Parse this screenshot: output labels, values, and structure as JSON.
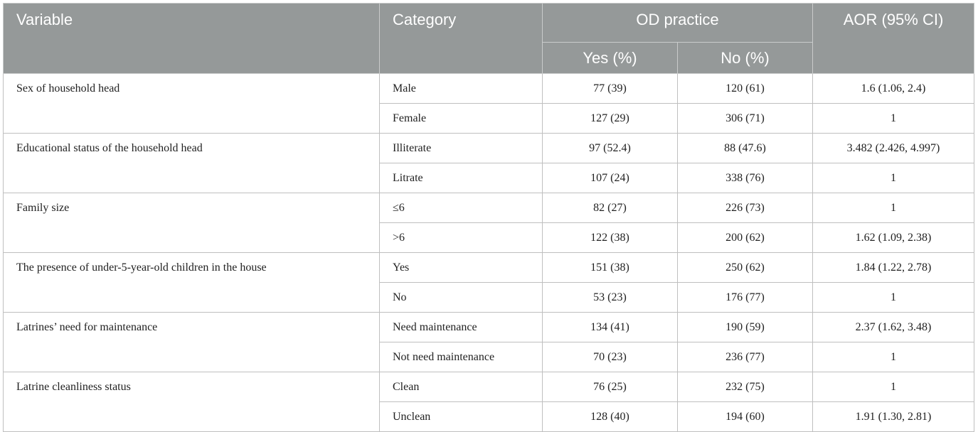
{
  "header": {
    "variable": "Variable",
    "category": "Category",
    "od_practice": "OD practice",
    "aor": "AOR (95% CI)",
    "yes": "Yes (%)",
    "no": "No (%)"
  },
  "rows": [
    {
      "variable": "Sex of household head",
      "cats": [
        {
          "category": "Male",
          "yes": "77 (39)",
          "no": "120 (61)",
          "aor": "1.6 (1.06, 2.4)"
        },
        {
          "category": "Female",
          "yes": "127 (29)",
          "no": "306 (71)",
          "aor": "1"
        }
      ]
    },
    {
      "variable": "Educational status of the household head",
      "cats": [
        {
          "category": "Illiterate",
          "yes": "97 (52.4)",
          "no": "88 (47.6)",
          "aor": "3.482 (2.426, 4.997)"
        },
        {
          "category": "Litrate",
          "yes": "107 (24)",
          "no": "338 (76)",
          "aor": "1"
        }
      ]
    },
    {
      "variable": "Family size",
      "cats": [
        {
          "category": "≤6",
          "yes": "82 (27)",
          "no": "226 (73)",
          "aor": "1"
        },
        {
          "category": ">6",
          "yes": "122 (38)",
          "no": "200 (62)",
          "aor": "1.62 (1.09, 2.38)"
        }
      ]
    },
    {
      "variable": "The presence of under-5-year-old children in the house",
      "cats": [
        {
          "category": "Yes",
          "yes": "151 (38)",
          "no": "250 (62)",
          "aor": "1.84 (1.22, 2.78)"
        },
        {
          "category": "No",
          "yes": "53 (23)",
          "no": "176 (77)",
          "aor": "1"
        }
      ]
    },
    {
      "variable": "Latrines’ need for maintenance",
      "cats": [
        {
          "category": "Need maintenance",
          "yes": "134 (41)",
          "no": "190 (59)",
          "aor": "2.37 (1.62, 3.48)"
        },
        {
          "category": "Not need maintenance",
          "yes": "70 (23)",
          "no": "236 (77)",
          "aor": "1"
        }
      ]
    },
    {
      "variable": "Latrine cleanliness status",
      "cats": [
        {
          "category": "Clean",
          "yes": "76 (25)",
          "no": "232 (75)",
          "aor": "1"
        },
        {
          "category": "Unclean",
          "yes": "128 (40)",
          "no": "194 (60)",
          "aor": "1.91 (1.30, 2.81)"
        }
      ]
    }
  ]
}
